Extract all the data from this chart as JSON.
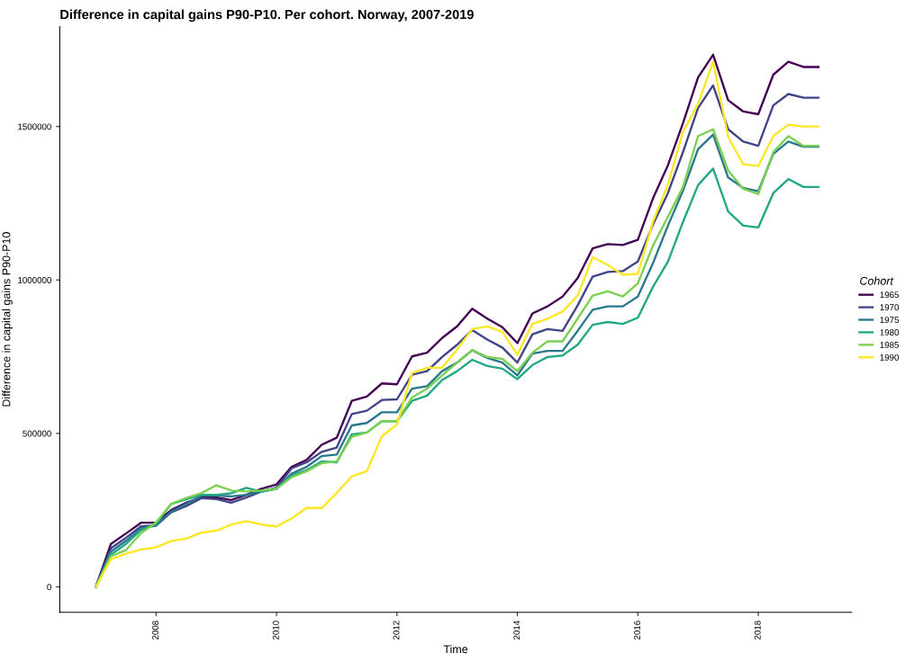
{
  "chart_data": {
    "type": "line",
    "title": "Difference in capital gains P90-P10. Per cohort. Norway, 2007-2019",
    "xlabel": "Time",
    "ylabel": "Difference in capital gains P90-P10",
    "legend_title": "Cohort",
    "legend": "right",
    "grid": false,
    "marker": "none",
    "line_style": "solid",
    "x": [
      2007,
      2007.25,
      2007.5,
      2007.75,
      2008,
      2008.25,
      2008.5,
      2008.75,
      2009,
      2009.25,
      2009.5,
      2009.75,
      2010,
      2010.25,
      2010.5,
      2010.75,
      2011,
      2011.25,
      2011.5,
      2011.75,
      2012,
      2012.25,
      2012.5,
      2012.75,
      2013,
      2013.25,
      2013.5,
      2013.75,
      2014,
      2014.25,
      2014.5,
      2014.75,
      2015,
      2015.25,
      2015.5,
      2015.75,
      2016,
      2016.25,
      2016.5,
      2016.75,
      2017,
      2017.25,
      2017.5,
      2017.75,
      2018,
      2018.25,
      2018.5,
      2018.75,
      2019
    ],
    "xlim": [
      2006.4,
      2019.55
    ],
    "xticks": [
      2008,
      2010,
      2012,
      2014,
      2016,
      2018
    ],
    "ylim": [
      -83000,
      1826000
    ],
    "yticks": [
      0,
      500000,
      1000000,
      1500000
    ],
    "series": [
      {
        "name": "1965",
        "color": "#440154",
        "values": [
          0,
          140000,
          174000,
          209000,
          209000,
          250000,
          274000,
          291000,
          291000,
          283000,
          300000,
          320000,
          334000,
          391000,
          414000,
          463000,
          486000,
          606000,
          620000,
          663000,
          660000,
          751000,
          763000,
          811000,
          849000,
          906000,
          874000,
          846000,
          794000,
          891000,
          914000,
          946000,
          1006000,
          1103000,
          1117000,
          1114000,
          1131000,
          1265000,
          1374000,
          1511000,
          1660000,
          1734000,
          1586000,
          1549000,
          1540000,
          1669000,
          1711000,
          1694000,
          1694000
        ]
      },
      {
        "name": "1970",
        "color": "#414487",
        "values": [
          0,
          126000,
          160000,
          197000,
          200000,
          243000,
          263000,
          289000,
          286000,
          274000,
          291000,
          311000,
          323000,
          386000,
          406000,
          440000,
          454000,
          563000,
          574000,
          609000,
          611000,
          691000,
          703000,
          749000,
          789000,
          837000,
          806000,
          780000,
          731000,
          823000,
          840000,
          834000,
          917000,
          1011000,
          1026000,
          1029000,
          1060000,
          1180000,
          1283000,
          1417000,
          1560000,
          1634000,
          1491000,
          1451000,
          1437000,
          1569000,
          1606000,
          1594000,
          1594000
        ]
      },
      {
        "name": "1975",
        "color": "#2a788e",
        "values": [
          0,
          115000,
          150000,
          190000,
          200000,
          245000,
          270000,
          297000,
          297000,
          295000,
          300000,
          310000,
          320000,
          369000,
          391000,
          426000,
          431000,
          526000,
          534000,
          569000,
          569000,
          646000,
          654000,
          703000,
          731000,
          771000,
          746000,
          731000,
          689000,
          760000,
          769000,
          769000,
          834000,
          903000,
          914000,
          914000,
          946000,
          1054000,
          1177000,
          1291000,
          1426000,
          1474000,
          1334000,
          1300000,
          1289000,
          1411000,
          1451000,
          1434000,
          1434000
        ]
      },
      {
        "name": "1980",
        "color": "#22a884",
        "values": [
          0,
          105000,
          140000,
          185000,
          205000,
          270000,
          285000,
          300000,
          300000,
          305000,
          323000,
          310000,
          320000,
          363000,
          380000,
          409000,
          406000,
          497000,
          503000,
          540000,
          540000,
          606000,
          623000,
          674000,
          703000,
          740000,
          720000,
          711000,
          677000,
          723000,
          749000,
          754000,
          789000,
          854000,
          863000,
          857000,
          877000,
          977000,
          1060000,
          1189000,
          1309000,
          1363000,
          1223000,
          1177000,
          1171000,
          1283000,
          1329000,
          1303000,
          1303000
        ]
      },
      {
        "name": "1985",
        "color": "#7ad151",
        "values": [
          0,
          100000,
          120000,
          175000,
          210000,
          270000,
          290000,
          305000,
          331000,
          314000,
          311000,
          314000,
          320000,
          357000,
          377000,
          403000,
          409000,
          489000,
          503000,
          540000,
          540000,
          617000,
          646000,
          689000,
          731000,
          771000,
          749000,
          743000,
          703000,
          763000,
          800000,
          800000,
          874000,
          949000,
          963000,
          946000,
          989000,
          1111000,
          1206000,
          1303000,
          1469000,
          1491000,
          1357000,
          1297000,
          1280000,
          1417000,
          1469000,
          1437000,
          1437000
        ]
      },
      {
        "name": "1990",
        "color": "#fde725",
        "values": [
          0,
          90000,
          108000,
          122000,
          129000,
          149000,
          157000,
          177000,
          183000,
          203000,
          214000,
          203000,
          197000,
          223000,
          257000,
          257000,
          306000,
          360000,
          377000,
          491000,
          529000,
          697000,
          714000,
          714000,
          774000,
          840000,
          849000,
          831000,
          757000,
          857000,
          874000,
          897000,
          949000,
          1074000,
          1049000,
          1017000,
          1020000,
          1189000,
          1311000,
          1483000,
          1574000,
          1711000,
          1466000,
          1377000,
          1371000,
          1469000,
          1506000,
          1500000,
          1500000
        ]
      }
    ]
  }
}
